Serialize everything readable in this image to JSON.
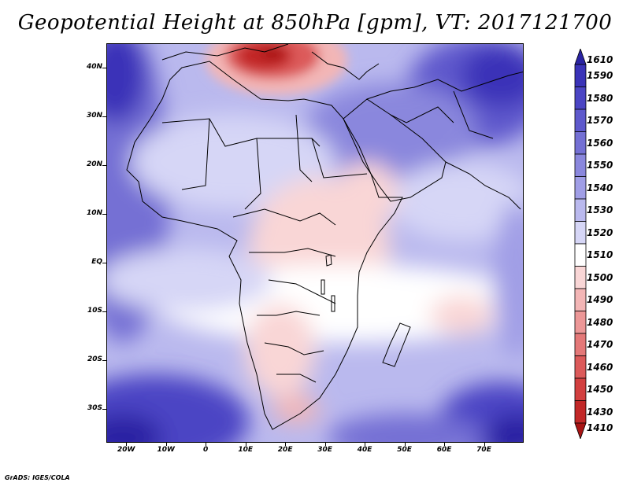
{
  "title": "Geopotential Height at 850hPa [gpm], VT: 2017121700",
  "credit": "GrADS: IGES/COLA",
  "map": {
    "region": "Africa and Middle East",
    "lon_range": [
      -25,
      80
    ],
    "lat_range": [
      -37,
      45
    ],
    "lat_ticks": [
      "40N",
      "30N",
      "20N",
      "10N",
      "EQ",
      "10S",
      "20S",
      "30S"
    ],
    "lon_ticks": [
      "20W",
      "10W",
      "0",
      "10E",
      "20E",
      "30E",
      "40E",
      "50E",
      "60E",
      "70E"
    ]
  },
  "colorbar": {
    "labels": [
      "1610",
      "1590",
      "1580",
      "1570",
      "1560",
      "1550",
      "1540",
      "1530",
      "1520",
      "1510",
      "1500",
      "1490",
      "1480",
      "1470",
      "1460",
      "1450",
      "1430",
      "1410"
    ],
    "colors": [
      "#2a23a3",
      "#3a33b8",
      "#4b45c4",
      "#5e59cc",
      "#7470d4",
      "#8a87dd",
      "#a09ee6",
      "#bab9ee",
      "#d6d6f6",
      "#ffffff",
      "#f9d6d6",
      "#f3b6b6",
      "#ec9797",
      "#e47878",
      "#dc5a5a",
      "#d23f3f",
      "#c22828",
      "#a81414"
    ]
  }
}
